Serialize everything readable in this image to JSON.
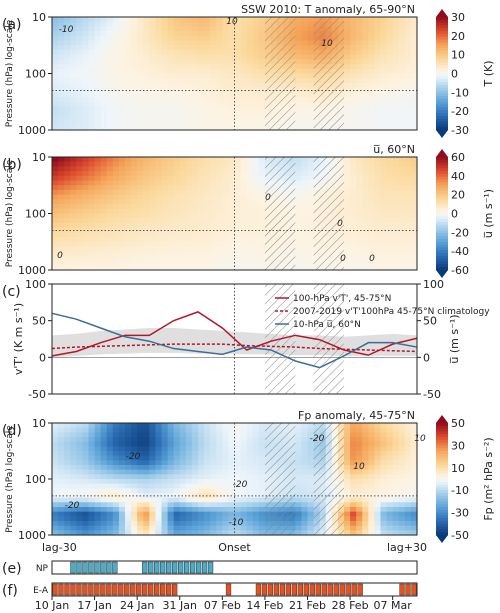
{
  "chart_data": [
    {
      "panel": "(a)",
      "type": "heatmap",
      "title": "SSW 2010: T anomaly, 65-90°N",
      "ylabel": "Pressure (hPa) log-scale",
      "yticks": [
        "10",
        "100",
        "1000"
      ],
      "ylim": [
        1000,
        10
      ],
      "cbar_label": "T (K)",
      "cbar_ticks": [
        "30",
        "20",
        "10",
        "0",
        "-10",
        "-20",
        "-30"
      ],
      "cbar_range": [
        -30,
        30
      ],
      "contour_labels": [
        "-10",
        "10",
        "10"
      ],
      "grid_rows_pressure": [
        10,
        20,
        50,
        100,
        200,
        500,
        1000
      ],
      "grid_cols_days": [
        -30,
        -25,
        -20,
        -15,
        -10,
        -5,
        0,
        5,
        10,
        15,
        20,
        25,
        30
      ],
      "values": [
        [
          -10,
          -6,
          -2,
          4,
          10,
          12,
          6,
          9,
          14,
          16,
          12,
          8,
          4
        ],
        [
          -7,
          -4,
          0,
          4,
          8,
          9,
          6,
          10,
          15,
          18,
          12,
          7,
          3
        ],
        [
          -4,
          -2,
          1,
          3,
          5,
          6,
          6,
          9,
          12,
          14,
          9,
          5,
          3
        ],
        [
          -2,
          -1,
          1,
          2,
          3,
          3,
          4,
          6,
          7,
          8,
          5,
          3,
          2
        ],
        [
          -3,
          -2,
          0,
          1,
          1,
          2,
          3,
          3,
          3,
          4,
          2,
          1,
          0
        ],
        [
          -5,
          -3,
          -1,
          0,
          0,
          1,
          2,
          2,
          1,
          1,
          0,
          -1,
          -1
        ],
        [
          -4,
          -3,
          -1,
          0,
          0,
          1,
          1,
          1,
          0,
          0,
          0,
          -1,
          -1
        ]
      ]
    },
    {
      "panel": "(b)",
      "type": "heatmap",
      "title": "u̅, 60°N",
      "ylabel": "Pressure (hPa) log-scale",
      "yticks": [
        "10",
        "100",
        "1000"
      ],
      "ylim": [
        1000,
        10
      ],
      "cbar_label": "u̅ (m s⁻¹)",
      "cbar_ticks": [
        "60",
        "40",
        "20",
        "0",
        "-20",
        "-40",
        "-60"
      ],
      "cbar_range": [
        -60,
        60
      ],
      "contour_labels": [
        "0",
        "0",
        "0",
        "0",
        "0"
      ],
      "grid_rows_pressure": [
        10,
        20,
        50,
        100,
        200,
        500,
        1000
      ],
      "grid_cols_days": [
        -30,
        -25,
        -20,
        -15,
        -10,
        -5,
        0,
        5,
        10,
        15,
        20,
        25,
        30
      ],
      "values": [
        [
          60,
          48,
          35,
          25,
          18,
          12,
          8,
          -6,
          -10,
          -4,
          8,
          14,
          18
        ],
        [
          48,
          38,
          28,
          20,
          15,
          10,
          6,
          -4,
          -6,
          -2,
          6,
          12,
          14
        ],
        [
          32,
          26,
          20,
          15,
          11,
          8,
          5,
          2,
          0,
          4,
          6,
          10,
          10
        ],
        [
          22,
          18,
          14,
          12,
          9,
          7,
          5,
          4,
          3,
          4,
          6,
          8,
          8
        ],
        [
          14,
          12,
          10,
          8,
          7,
          6,
          4,
          4,
          3,
          4,
          5,
          6,
          6
        ],
        [
          8,
          7,
          6,
          5,
          4,
          4,
          2,
          3,
          2,
          3,
          3,
          4,
          4
        ],
        [
          4,
          3,
          3,
          2,
          2,
          2,
          0,
          1,
          0,
          1,
          1,
          2,
          2
        ]
      ]
    },
    {
      "panel": "(c)",
      "type": "line",
      "ylabel_left": "v'T' (K m s⁻¹)",
      "ylabel_right": "u̅ (m s⁻¹)",
      "yticks_left": [
        "100",
        "50",
        "0",
        "-50"
      ],
      "yticks_right": [
        "100",
        "50",
        "0",
        "-50"
      ],
      "ylim": [
        -50,
        100
      ],
      "x": [
        -30,
        -26,
        -22,
        -18,
        -14,
        -10,
        -6,
        -2,
        2,
        6,
        10,
        14,
        18,
        22,
        26,
        30
      ],
      "series": [
        {
          "name": "100-hPa v'T', 45-75°N",
          "color": "#b2182b",
          "style": "solid",
          "values": [
            2,
            8,
            20,
            30,
            30,
            50,
            62,
            40,
            10,
            22,
            30,
            24,
            10,
            3,
            18,
            26
          ]
        },
        {
          "name": "2007-2019 v'T'100hPa 45-75°N climatology",
          "color": "#b2182b",
          "style": "dashed",
          "values": [
            12,
            14,
            15,
            16,
            17,
            18,
            18,
            18,
            16,
            15,
            14,
            12,
            11,
            10,
            9,
            8
          ]
        },
        {
          "name": "10-hPa u̅, 60°N",
          "color": "#3a6e9a",
          "style": "solid",
          "values": [
            60,
            52,
            40,
            28,
            22,
            12,
            8,
            4,
            14,
            10,
            -5,
            -14,
            2,
            20,
            20,
            14
          ]
        }
      ],
      "climatology_band": {
        "lower": [
          0,
          2,
          4,
          5,
          6,
          6,
          5,
          5,
          4,
          4,
          3,
          3,
          2,
          2,
          2,
          2
        ],
        "upper": [
          30,
          32,
          36,
          38,
          40,
          40,
          38,
          36,
          34,
          32,
          30,
          30,
          28,
          30,
          32,
          30
        ]
      }
    },
    {
      "panel": "(d)",
      "type": "heatmap",
      "title": "Fp anomaly, 45-75°N",
      "ylabel": "Pressure (hPa) log-scale",
      "yticks": [
        "10",
        "100",
        "1000"
      ],
      "ylim": [
        1000,
        10
      ],
      "cbar_label": "Fp (m² hPa s⁻²)",
      "cbar_ticks": [
        "50",
        "30",
        "10",
        "-10",
        "-30",
        "-50"
      ],
      "cbar_range": [
        -50,
        50
      ],
      "contour_labels": [
        "-20",
        "-20",
        "-20",
        "-20",
        "10",
        "10",
        "-10"
      ],
      "grid_rows_pressure": [
        10,
        20,
        50,
        100,
        200,
        500,
        1000
      ],
      "grid_cols_days": [
        -30,
        -25,
        -20,
        -15,
        -10,
        -5,
        0,
        5,
        10,
        15,
        20,
        25,
        30
      ],
      "values": [
        [
          -5,
          -10,
          -35,
          -45,
          -20,
          -8,
          0,
          -6,
          -4,
          -10,
          25,
          12,
          4
        ],
        [
          -10,
          -18,
          -40,
          -48,
          -25,
          -10,
          -2,
          -8,
          -6,
          -15,
          30,
          18,
          6
        ],
        [
          -8,
          -15,
          -30,
          -40,
          -20,
          -8,
          -4,
          -6,
          -8,
          -12,
          28,
          10,
          4
        ],
        [
          -4,
          -6,
          -10,
          -12,
          -8,
          -4,
          -2,
          -4,
          -6,
          -5,
          10,
          4,
          2
        ],
        [
          -2,
          0,
          6,
          -4,
          -2,
          10,
          -2,
          -4,
          -8,
          -6,
          4,
          2,
          0
        ],
        [
          -35,
          -45,
          -30,
          30,
          -40,
          -30,
          -20,
          -30,
          -35,
          -10,
          40,
          -20,
          -30
        ],
        [
          -20,
          -30,
          -20,
          10,
          -25,
          -20,
          -10,
          -20,
          -20,
          -5,
          20,
          -10,
          -15
        ]
      ]
    },
    {
      "panel": "(e)",
      "type": "table",
      "row_label": "NP",
      "color": "#4bacc6",
      "day_flags": [
        0,
        0,
        0,
        1,
        1,
        1,
        1,
        1,
        1,
        1,
        1,
        0,
        0,
        0,
        0,
        1,
        1,
        1,
        1,
        1,
        1,
        1,
        1,
        1,
        1,
        1,
        1,
        0,
        0,
        0,
        0,
        0,
        0,
        0,
        0,
        0,
        0,
        0,
        0,
        0,
        0,
        0,
        0,
        0,
        0,
        0,
        0,
        0,
        0,
        0,
        0,
        0,
        0,
        0,
        0,
        0,
        0,
        0,
        0,
        0,
        0
      ]
    },
    {
      "panel": "(f)",
      "type": "table",
      "row_label": "E-A",
      "color": "#e6521f",
      "day_flags": [
        1,
        1,
        1,
        1,
        1,
        1,
        1,
        1,
        1,
        1,
        1,
        1,
        1,
        1,
        1,
        1,
        1,
        1,
        1,
        1,
        1,
        0,
        0,
        0,
        0,
        0,
        0,
        0,
        0,
        1,
        0,
        0,
        0,
        0,
        1,
        1,
        1,
        1,
        1,
        1,
        1,
        1,
        1,
        1,
        1,
        1,
        1,
        1,
        1,
        1,
        1,
        1,
        0,
        0,
        0,
        0,
        0,
        0,
        1,
        1,
        1
      ]
    }
  ],
  "shared_x": {
    "range_days": [
      -30,
      30
    ],
    "onset_day": 0,
    "hatch_spans_days": [
      [
        5,
        10
      ],
      [
        13,
        18
      ]
    ],
    "top_tick_labels": [
      "lag-30",
      "Onset",
      "lag+30"
    ],
    "date_labels": [
      "10 Jan",
      "17 Jan",
      "24 Jan",
      "31 Jan",
      "07 Feb",
      "14 Feb",
      "21 Feb",
      "28 Feb",
      "07 Mar"
    ],
    "date_label_days": [
      -30,
      -23,
      -16,
      -9,
      -2,
      5,
      12,
      19,
      26
    ]
  },
  "tropopause_level_hPa": 200,
  "colors": {
    "cold": "#2166ac",
    "warm": "#b2182b",
    "red_line": "#b2182b",
    "blue_line": "#3a6e9a",
    "np_bar": "#4bacc6",
    "ea_bar": "#e6521f"
  }
}
